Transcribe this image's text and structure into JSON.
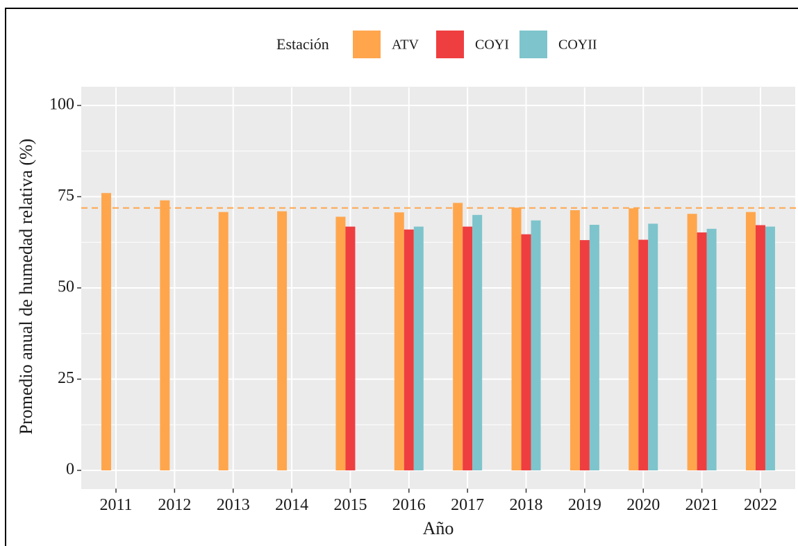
{
  "chart_data": {
    "type": "bar",
    "xlabel": "Año",
    "ylabel": "Promedio anual de humedad relativa (%)",
    "legend_title": "Estación",
    "legend_position": "top",
    "categories": [
      "2011",
      "2012",
      "2013",
      "2014",
      "2015",
      "2016",
      "2017",
      "2018",
      "2019",
      "2020",
      "2021",
      "2022"
    ],
    "series": [
      {
        "name": "ATV",
        "color": "#ffa64d",
        "values": [
          76,
          74,
          70.8,
          71,
          69.5,
          70.7,
          73.3,
          72,
          71.3,
          71.8,
          70.3,
          70.8
        ]
      },
      {
        "name": "COYI",
        "color": "#ef3e40",
        "values": [
          null,
          null,
          null,
          null,
          66.8,
          66,
          66.8,
          64.7,
          63.1,
          63.2,
          65.2,
          67.2
        ]
      },
      {
        "name": "COYII",
        "color": "#7ec4cc",
        "values": [
          null,
          null,
          null,
          null,
          null,
          66.8,
          70,
          68.5,
          67.3,
          67.6,
          66.2,
          66.8
        ]
      }
    ],
    "reference_line": {
      "value": 71.9,
      "color": "#ffa64d"
    },
    "ylim": [
      -5,
      105
    ],
    "yticks": [
      0,
      25,
      50,
      75,
      100
    ],
    "minor_yticks": [
      12.5,
      37.5,
      62.5,
      87.5
    ],
    "grid": true
  }
}
